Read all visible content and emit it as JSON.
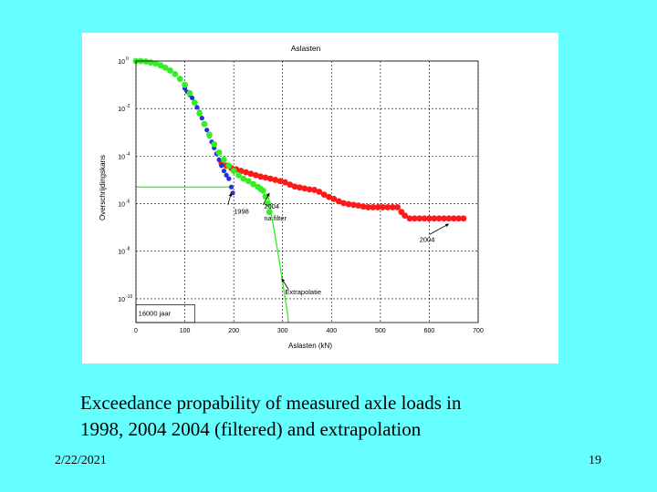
{
  "slide": {
    "caption_line1": "Exceedance propability of measured axle loads in",
    "caption_line2": "1998, 2004 2004 (filtered) and extrapolation",
    "date": "2/22/2021",
    "page_number": "19",
    "background_color": "#66ffff"
  },
  "chart_data": {
    "type": "scatter",
    "title": "Aslasten",
    "xlabel": "Aslasten (kN)",
    "ylabel": "Overschrijdingskans",
    "xlim": [
      0,
      700
    ],
    "ylim_log10": [
      -11,
      0
    ],
    "y_scale": "log",
    "grid": true,
    "x_ticks": [
      "0",
      "100",
      "200",
      "300",
      "400",
      "500",
      "600",
      "700"
    ],
    "y_tick_labels": [
      {
        "base": "10",
        "exp": "0",
        "log10": 0
      },
      {
        "base": "10",
        "exp": "-2",
        "log10": -2
      },
      {
        "base": "10",
        "exp": "-4",
        "log10": -4
      },
      {
        "base": "10",
        "exp": "-6",
        "log10": -6
      },
      {
        "base": "10",
        "exp": "-8",
        "log10": -8
      },
      {
        "base": "10",
        "exp": "-10",
        "log10": -10
      }
    ],
    "annotations": [
      {
        "text": "1998",
        "x": 200,
        "log10_y": -6.3
      },
      {
        "text": "2004",
        "x": 262,
        "log10_y": -6.1
      },
      {
        "text": "na filter",
        "x": 262,
        "log10_y": -6.6
      },
      {
        "text": "2004",
        "x": 580,
        "log10_y": -7.5
      },
      {
        "text": "Extrapolatie",
        "x": 305,
        "log10_y": -9.7
      },
      {
        "text": "16000 jaar",
        "x": 5,
        "log10_y": -10.6
      }
    ],
    "series": [
      {
        "name": "2004",
        "color": "#ff1a1a",
        "points": [
          [
            175,
            -4.3
          ],
          [
            185,
            -4.4
          ],
          [
            195,
            -4.5
          ],
          [
            205,
            -4.55
          ],
          [
            215,
            -4.62
          ],
          [
            225,
            -4.68
          ],
          [
            235,
            -4.74
          ],
          [
            245,
            -4.8
          ],
          [
            255,
            -4.86
          ],
          [
            265,
            -4.9
          ],
          [
            275,
            -4.95
          ],
          [
            285,
            -5.0
          ],
          [
            295,
            -5.05
          ],
          [
            305,
            -5.1
          ],
          [
            315,
            -5.2
          ],
          [
            325,
            -5.28
          ],
          [
            335,
            -5.32
          ],
          [
            345,
            -5.36
          ],
          [
            355,
            -5.4
          ],
          [
            365,
            -5.42
          ],
          [
            375,
            -5.5
          ],
          [
            385,
            -5.62
          ],
          [
            395,
            -5.72
          ],
          [
            405,
            -5.8
          ],
          [
            415,
            -5.9
          ],
          [
            425,
            -5.98
          ],
          [
            435,
            -6.02
          ],
          [
            445,
            -6.05
          ],
          [
            455,
            -6.08
          ],
          [
            465,
            -6.12
          ],
          [
            475,
            -6.15
          ],
          [
            485,
            -6.15
          ],
          [
            495,
            -6.15
          ],
          [
            505,
            -6.15
          ],
          [
            515,
            -6.15
          ],
          [
            525,
            -6.15
          ],
          [
            535,
            -6.15
          ],
          [
            543,
            -6.35
          ],
          [
            550,
            -6.5
          ],
          [
            560,
            -6.62
          ],
          [
            570,
            -6.62
          ],
          [
            580,
            -6.62
          ],
          [
            590,
            -6.62
          ],
          [
            600,
            -6.62
          ],
          [
            610,
            -6.62
          ],
          [
            620,
            -6.62
          ],
          [
            630,
            -6.62
          ],
          [
            640,
            -6.62
          ],
          [
            650,
            -6.62
          ],
          [
            660,
            -6.62
          ],
          [
            670,
            -6.62
          ]
        ]
      },
      {
        "name": "1998",
        "color": "#2233dd",
        "points": [
          [
            100,
            -1.15
          ],
          [
            105,
            -1.3
          ],
          [
            110,
            -1.42
          ],
          [
            115,
            -1.55
          ],
          [
            120,
            -1.72
          ],
          [
            125,
            -1.95
          ],
          [
            130,
            -2.15
          ],
          [
            135,
            -2.4
          ],
          [
            140,
            -2.65
          ],
          [
            145,
            -2.9
          ],
          [
            150,
            -3.15
          ],
          [
            155,
            -3.4
          ],
          [
            160,
            -3.65
          ],
          [
            165,
            -3.9
          ],
          [
            170,
            -4.15
          ],
          [
            175,
            -4.4
          ],
          [
            180,
            -4.62
          ],
          [
            185,
            -4.8
          ],
          [
            190,
            -4.95
          ],
          [
            195,
            -5.3
          ],
          [
            198,
            -5.55
          ]
        ]
      },
      {
        "name": "2004 na filter",
        "color": "#33ee22",
        "points": [
          [
            0,
            0
          ],
          [
            10,
            0
          ],
          [
            20,
            -0.02
          ],
          [
            30,
            -0.06
          ],
          [
            40,
            -0.1
          ],
          [
            50,
            -0.18
          ],
          [
            60,
            -0.28
          ],
          [
            70,
            -0.4
          ],
          [
            80,
            -0.55
          ],
          [
            90,
            -0.75
          ],
          [
            100,
            -1.0
          ],
          [
            110,
            -1.35
          ],
          [
            120,
            -1.75
          ],
          [
            130,
            -2.2
          ],
          [
            140,
            -2.65
          ],
          [
            150,
            -3.1
          ],
          [
            160,
            -3.5
          ],
          [
            170,
            -3.85
          ],
          [
            180,
            -4.15
          ],
          [
            190,
            -4.4
          ],
          [
            200,
            -4.62
          ],
          [
            210,
            -4.8
          ],
          [
            220,
            -4.95
          ],
          [
            230,
            -5.05
          ],
          [
            240,
            -5.18
          ],
          [
            250,
            -5.3
          ],
          [
            255,
            -5.38
          ],
          [
            260,
            -5.45
          ],
          [
            265,
            -5.7
          ],
          [
            270,
            -6.0
          ],
          [
            273,
            -6.35
          ]
        ]
      }
    ],
    "extrapolation": {
      "name": "Extrapolatie",
      "color": "#33ee22",
      "points": [
        [
          270,
          -5.6
        ],
        [
          280,
          -6.8
        ],
        [
          290,
          -8.0
        ],
        [
          300,
          -9.3
        ],
        [
          310,
          -10.6
        ],
        [
          312,
          -11
        ]
      ]
    },
    "threshold_line": {
      "log10_y": -5.3,
      "x_from": 0,
      "x_to": 200,
      "color": "#33ee22"
    },
    "legend": "none"
  }
}
